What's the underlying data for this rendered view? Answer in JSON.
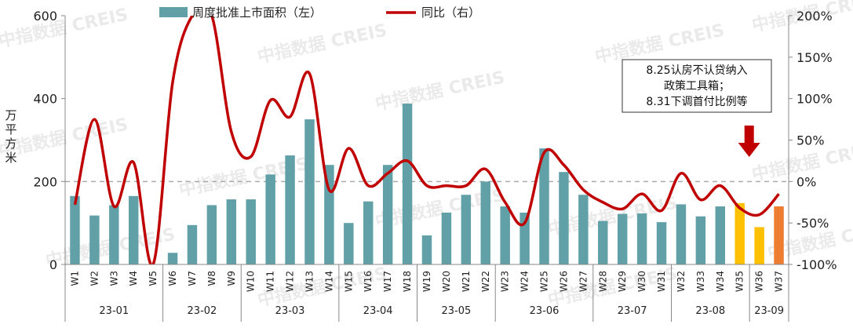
{
  "chart_data": {
    "type": "bar+line",
    "weeks": [
      "W1",
      "W2",
      "W3",
      "W4",
      "W5",
      "W6",
      "W7",
      "W8",
      "W9",
      "W10",
      "W11",
      "W12",
      "W13",
      "W14",
      "W15",
      "W16",
      "W17",
      "W18",
      "W19",
      "W20",
      "W21",
      "W22",
      "W23",
      "W24",
      "W25",
      "W26",
      "W27",
      "W28",
      "W29",
      "W30",
      "W31",
      "W32",
      "W33",
      "W34",
      "W35",
      "W36",
      "W37"
    ],
    "months": [
      {
        "label": "23-01",
        "start": 0,
        "end": 4
      },
      {
        "label": "23-02",
        "start": 5,
        "end": 8
      },
      {
        "label": "23-03",
        "start": 9,
        "end": 13
      },
      {
        "label": "23-04",
        "start": 14,
        "end": 17
      },
      {
        "label": "23-05",
        "start": 18,
        "end": 21
      },
      {
        "label": "23-06",
        "start": 22,
        "end": 26
      },
      {
        "label": "23-07",
        "start": 27,
        "end": 30
      },
      {
        "label": "23-08",
        "start": 31,
        "end": 34
      },
      {
        "label": "23-09",
        "start": 35,
        "end": 36
      }
    ],
    "bar_series": {
      "name": "周度批准上市面积（左）",
      "color": "#62a0a8",
      "values": [
        165,
        118,
        143,
        165,
        0,
        28,
        95,
        143,
        157,
        157,
        217,
        263,
        350,
        240,
        100,
        152,
        240,
        388,
        70,
        125,
        168,
        200,
        140,
        125,
        280,
        223,
        168,
        105,
        122,
        123,
        102,
        145,
        116,
        140,
        148,
        90,
        140
      ],
      "highlight": {
        "34": "#ffc000",
        "35": "#ffc000",
        "36": "#ed7d31"
      }
    },
    "line_series": {
      "name": "同比（右）",
      "color": "#c00000",
      "values": [
        -28,
        75,
        -30,
        23,
        -100,
        120,
        200,
        200,
        60,
        30,
        98,
        78,
        130,
        -10,
        40,
        -5,
        10,
        25,
        -5,
        -5,
        -5,
        15,
        -25,
        -50,
        35,
        20,
        -10,
        -25,
        -33,
        -15,
        -35,
        10,
        -22,
        -5,
        -32,
        -40,
        -15
      ]
    },
    "y_left": {
      "label": "万平方米",
      "min": 0,
      "max": 600,
      "ticks": [
        "0",
        "200",
        "400",
        "600"
      ]
    },
    "y_right": {
      "min": -100,
      "max": 200,
      "ticks": [
        "-100%",
        "-50%",
        "0%",
        "50%",
        "100%",
        "150%",
        "200%"
      ]
    },
    "reference_line": {
      "value": 200,
      "style": "dashed"
    },
    "legend_position": "top",
    "annotation": {
      "lines": [
        "8.25认房不认贷纳入",
        "政策工具箱；",
        "8.31下调首付比例等"
      ],
      "target_week": "W35"
    },
    "watermark": "中指数据 CREIS"
  }
}
